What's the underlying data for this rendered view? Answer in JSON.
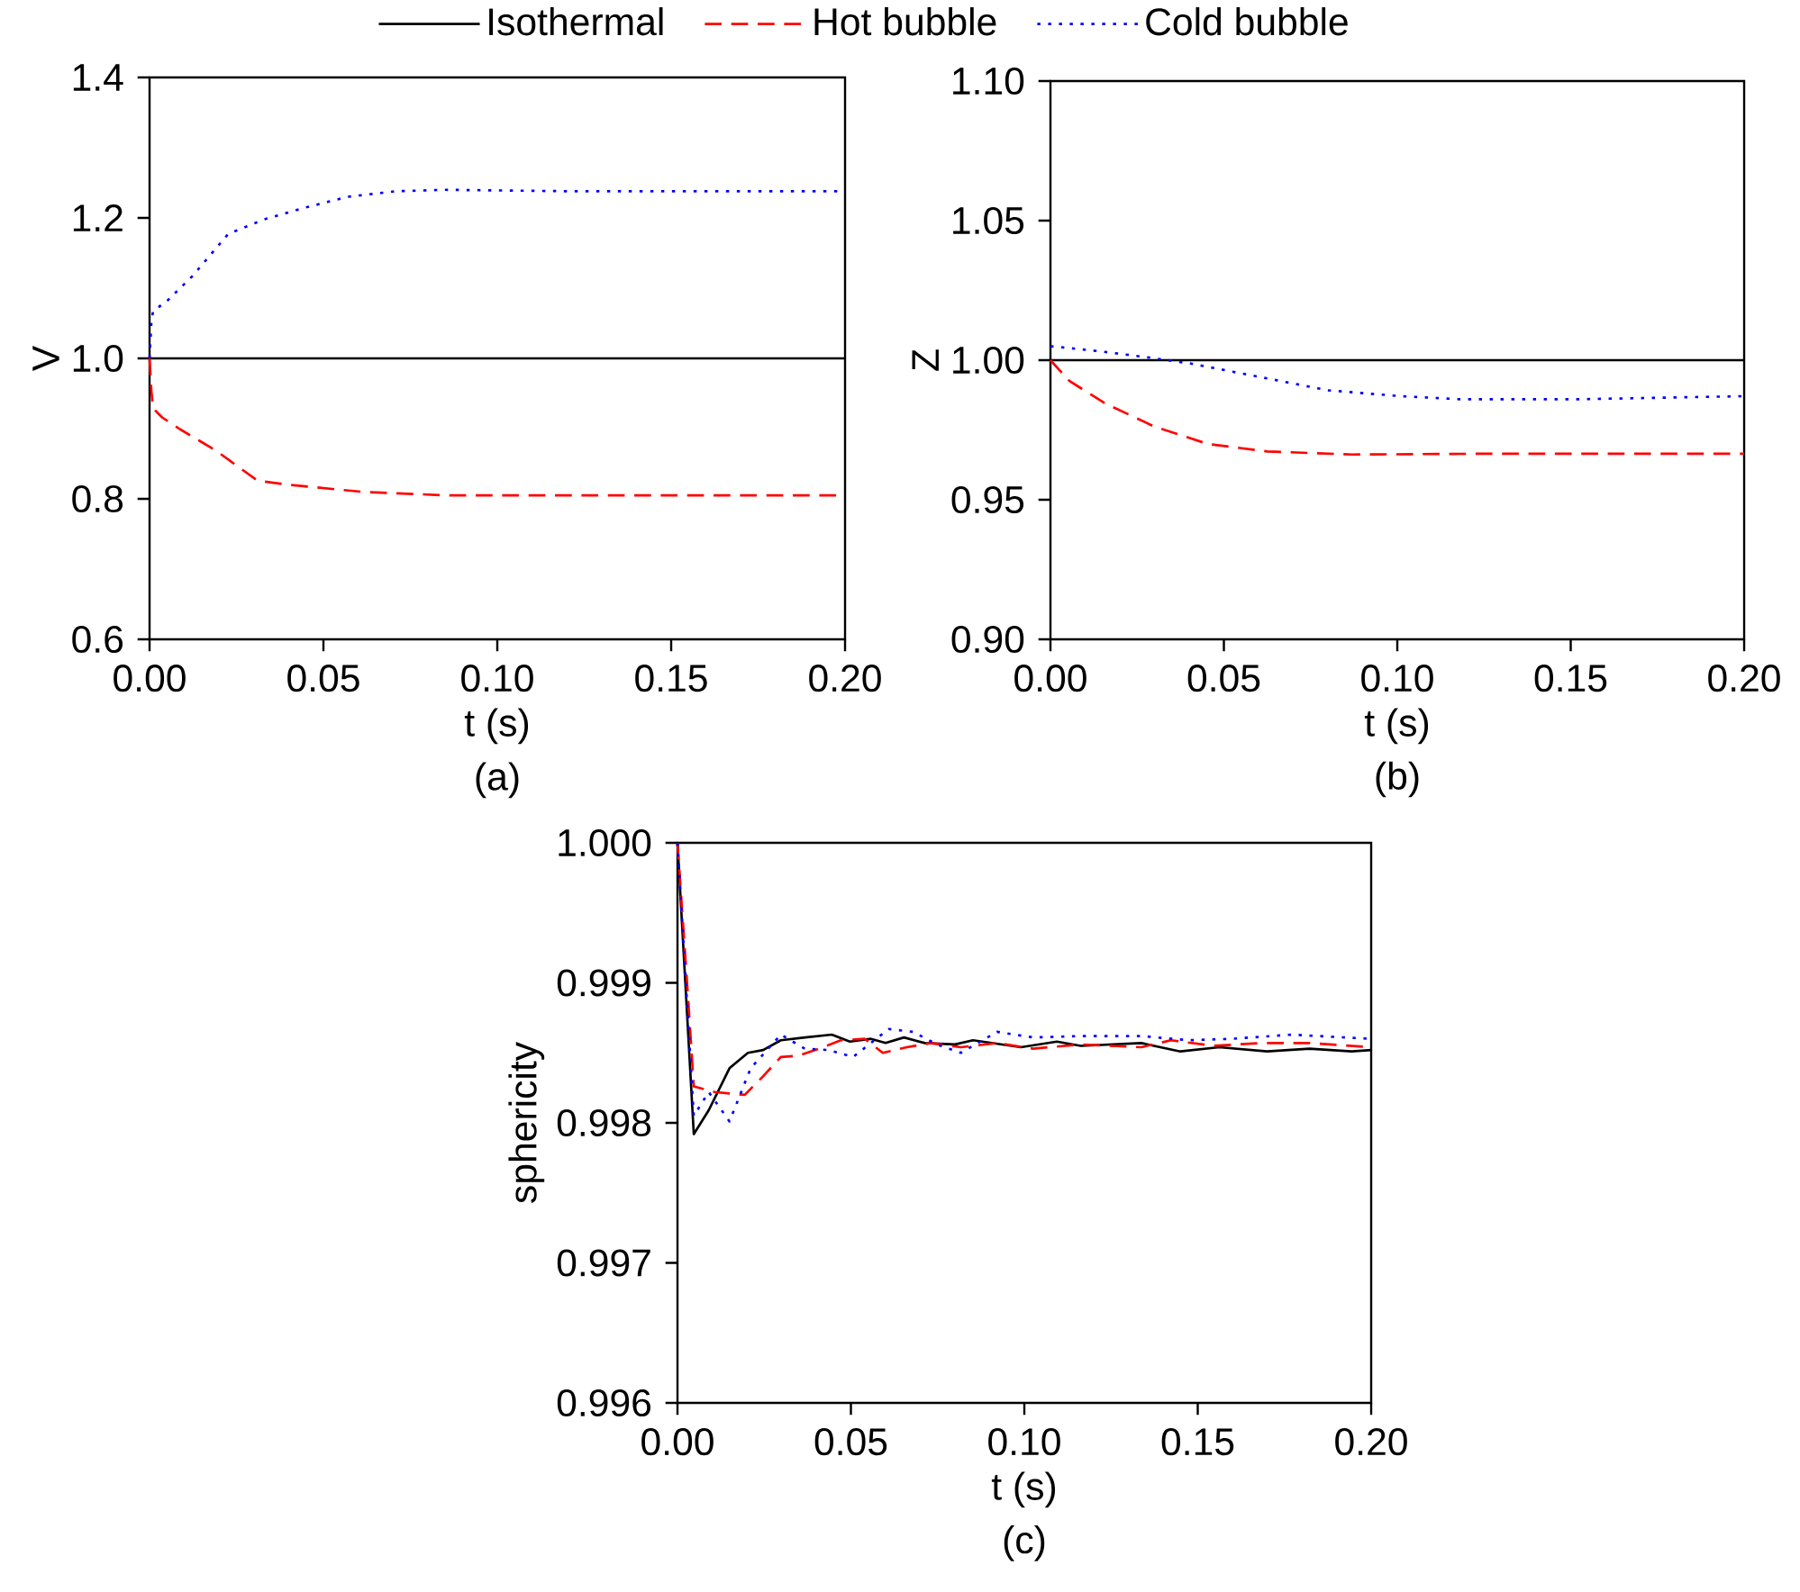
{
  "chart_data": [
    {
      "type": "line",
      "xlabel": "t (s)",
      "ylabel": "V",
      "annotations": [
        "(a)"
      ],
      "legend": "top",
      "grid": false,
      "xlim": [
        0,
        0.2
      ],
      "ylim": [
        0.6,
        1.4
      ],
      "xticks": [
        {
          "value": 0,
          "label": "0.00"
        },
        {
          "value": 0.05,
          "label": "0.05"
        },
        {
          "value": 0.1,
          "label": "0.10"
        },
        {
          "value": 0.15,
          "label": "0.15"
        },
        {
          "value": 0.2,
          "label": "0.20"
        }
      ],
      "yticks": [
        {
          "value": 0.6,
          "label": "0.6"
        },
        {
          "value": 0.8,
          "label": "0.8"
        },
        {
          "value": 1.0,
          "label": "1.0"
        },
        {
          "value": 1.2,
          "label": "1.2"
        },
        {
          "value": 1.4,
          "label": "1.4"
        }
      ],
      "series": [
        {
          "name": "Isothermal",
          "color": "#000000",
          "line_style": "solid",
          "x": [
            0,
            0.05,
            0.1,
            0.15,
            0.2
          ],
          "values": [
            1.0,
            1.0,
            1.0,
            1.0,
            1.0
          ]
        },
        {
          "name": "Hot bubble",
          "color": "#ff0000",
          "line_style": "dashed",
          "x": [
            0,
            0.0005,
            0.001,
            0.0036,
            0.0088,
            0.019,
            0.031,
            0.04,
            0.061,
            0.085,
            0.12,
            0.16,
            0.2
          ],
          "values": [
            1.0,
            0.955,
            0.929,
            0.916,
            0.899,
            0.869,
            0.826,
            0.82,
            0.81,
            0.805,
            0.805,
            0.805,
            0.805
          ]
        },
        {
          "name": "Cold bubble",
          "color": "#0000ff",
          "line_style": "dotted",
          "x": [
            0,
            0.0005,
            0.001,
            0.0053,
            0.0123,
            0.0226,
            0.033,
            0.045,
            0.057,
            0.071,
            0.085,
            0.12,
            0.16,
            0.2
          ],
          "values": [
            1.0,
            1.049,
            1.067,
            1.083,
            1.117,
            1.177,
            1.198,
            1.215,
            1.23,
            1.238,
            1.24,
            1.238,
            1.238,
            1.238
          ]
        }
      ]
    },
    {
      "type": "line",
      "xlabel": "t (s)",
      "ylabel": "Z",
      "annotations": [
        "(b)"
      ],
      "grid": false,
      "xlim": [
        0,
        0.2
      ],
      "ylim": [
        0.9,
        1.1
      ],
      "xticks": [
        {
          "value": 0,
          "label": "0.00"
        },
        {
          "value": 0.05,
          "label": "0.05"
        },
        {
          "value": 0.1,
          "label": "0.10"
        },
        {
          "value": 0.15,
          "label": "0.15"
        },
        {
          "value": 0.2,
          "label": "0.20"
        }
      ],
      "yticks": [
        {
          "value": 0.9,
          "label": "0.90"
        },
        {
          "value": 0.95,
          "label": "0.95"
        },
        {
          "value": 1.0,
          "label": "1.00"
        },
        {
          "value": 1.05,
          "label": "1.05"
        },
        {
          "value": 1.1,
          "label": "1.10"
        }
      ],
      "series": [
        {
          "color": "#000000",
          "line_style": "solid",
          "x": [
            0,
            0.05,
            0.1,
            0.15,
            0.2
          ],
          "values": [
            1.0,
            1.0,
            1.0,
            1.0,
            1.0
          ]
        },
        {
          "color": "#ff0000",
          "line_style": "dashed",
          "x": [
            0,
            0.0055,
            0.0158,
            0.0298,
            0.0453,
            0.0625,
            0.087,
            0.127,
            0.2
          ],
          "values": [
            1.0,
            0.9925,
            0.9845,
            0.9763,
            0.97,
            0.9673,
            0.9662,
            0.9665,
            0.9665
          ]
        },
        {
          "color": "#0000ff",
          "line_style": "dotted",
          "x": [
            0,
            0.0142,
            0.028,
            0.04,
            0.057,
            0.08,
            0.101,
            0.118,
            0.1526,
            0.2
          ],
          "values": [
            1.005,
            1.0032,
            1.001,
            0.9989,
            0.9948,
            0.9892,
            0.9871,
            0.986,
            0.986,
            0.9871
          ]
        }
      ]
    },
    {
      "type": "line",
      "xlabel": "t (s)",
      "ylabel": "sphericity",
      "annotations": [
        "(c)"
      ],
      "grid": false,
      "xlim": [
        0,
        0.2
      ],
      "ylim": [
        0.996,
        1.0
      ],
      "xticks": [
        {
          "value": 0,
          "label": "0.00"
        },
        {
          "value": 0.05,
          "label": "0.05"
        },
        {
          "value": 0.1,
          "label": "0.10"
        },
        {
          "value": 0.15,
          "label": "0.15"
        },
        {
          "value": 0.2,
          "label": "0.20"
        }
      ],
      "yticks": [
        {
          "value": 0.996,
          "label": "0.996"
        },
        {
          "value": 0.997,
          "label": "0.997"
        },
        {
          "value": 0.998,
          "label": "0.998"
        },
        {
          "value": 0.999,
          "label": "0.999"
        },
        {
          "value": 1.0,
          "label": "1.000"
        }
      ],
      "series": [
        {
          "color": "#000000",
          "line_style": "solid",
          "x": [
            0,
            0.0047,
            0.009,
            0.015,
            0.0203,
            0.0247,
            0.0298,
            0.0368,
            0.0445,
            0.0497,
            0.0558,
            0.06,
            0.0653,
            0.0713,
            0.08,
            0.0852,
            0.099,
            0.1094,
            0.1163,
            0.1337,
            0.145,
            0.1562,
            0.17,
            0.1822,
            0.1944,
            0.2
          ],
          "values": [
            1.0,
            0.99792,
            0.99809,
            0.99839,
            0.9985,
            0.99852,
            0.99859,
            0.99861,
            0.99863,
            0.99858,
            0.9986,
            0.99857,
            0.99861,
            0.99857,
            0.99856,
            0.99859,
            0.99854,
            0.99858,
            0.99855,
            0.99857,
            0.99851,
            0.99854,
            0.99851,
            0.99853,
            0.99851,
            0.99852
          ]
        },
        {
          "color": "#ff0000",
          "line_style": "dashed",
          "x": [
            0,
            0.0029,
            0.0047,
            0.0107,
            0.0194,
            0.0246,
            0.0298,
            0.035,
            0.0419,
            0.0471,
            0.054,
            0.0592,
            0.0661,
            0.0731,
            0.0817,
            0.0921,
            0.1025,
            0.1164,
            0.1337,
            0.1423,
            0.1545,
            0.1683,
            0.1822,
            0.2
          ],
          "values": [
            1.0,
            0.99895,
            0.99826,
            0.99822,
            0.9982,
            0.99833,
            0.99847,
            0.99848,
            0.99854,
            0.99859,
            0.9986,
            0.9985,
            0.99854,
            0.99857,
            0.99854,
            0.99857,
            0.99853,
            0.99856,
            0.99854,
            0.99859,
            0.99855,
            0.99857,
            0.99857,
            0.99854
          ]
        },
        {
          "color": "#0000ff",
          "line_style": "dotted",
          "x": [
            0,
            0.0047,
            0.009,
            0.015,
            0.0211,
            0.0298,
            0.0367,
            0.0436,
            0.0506,
            0.0609,
            0.0679,
            0.0748,
            0.0817,
            0.0921,
            0.1025,
            0.1164,
            0.1337,
            0.1475,
            0.1597,
            0.177,
            0.2
          ],
          "values": [
            1.0,
            0.99805,
            0.99822,
            0.99801,
            0.99839,
            0.99863,
            0.99853,
            0.99852,
            0.99847,
            0.99867,
            0.99865,
            0.99856,
            0.9985,
            0.99865,
            0.99861,
            0.99862,
            0.99862,
            0.99859,
            0.9986,
            0.99863,
            0.9986
          ]
        }
      ]
    }
  ]
}
